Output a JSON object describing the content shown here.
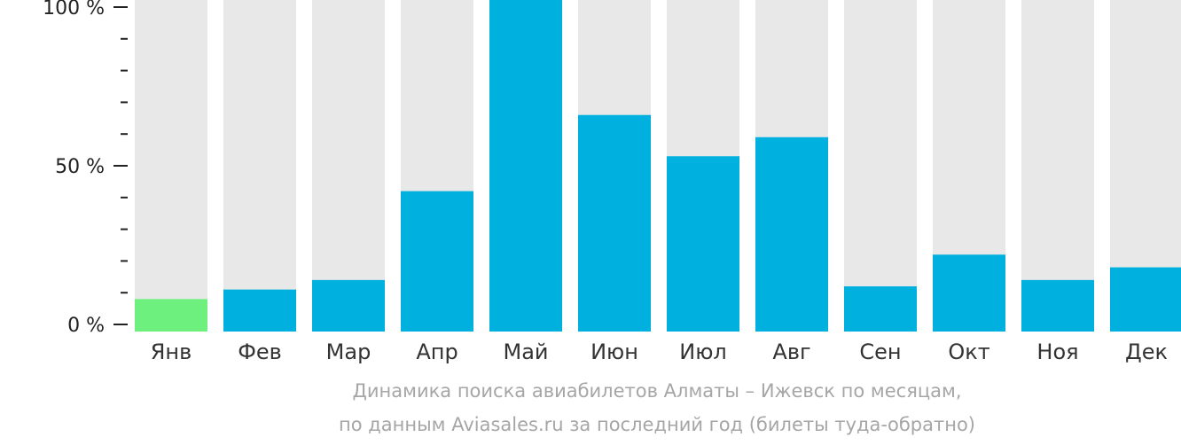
{
  "chart_data": {
    "type": "bar",
    "categories": [
      "Янв",
      "Фев",
      "Мар",
      "Апр",
      "Май",
      "Июн",
      "Июл",
      "Авг",
      "Сен",
      "Окт",
      "Ноя",
      "Дек"
    ],
    "values": [
      8,
      11,
      14,
      42,
      100,
      66,
      53,
      59,
      12,
      22,
      14,
      18
    ],
    "ylim": [
      0,
      100
    ],
    "y_ticks": [
      {
        "value": 0,
        "label": "0 %"
      },
      {
        "value": 50,
        "label": "50 %"
      },
      {
        "value": 100,
        "label": "100 %"
      }
    ],
    "highlight_category": "Янв",
    "colors": {
      "bar": "#00b0de",
      "highlight": "#6ef07e",
      "background_bar": "#e8e8e8",
      "axis": "#222222"
    },
    "caption_line1": "Динамика поиска авиабилетов Алматы – Ижевск по месяцам,",
    "caption_line2": "по данным Aviasales.ru за последний год (билеты туда-обратно)"
  }
}
